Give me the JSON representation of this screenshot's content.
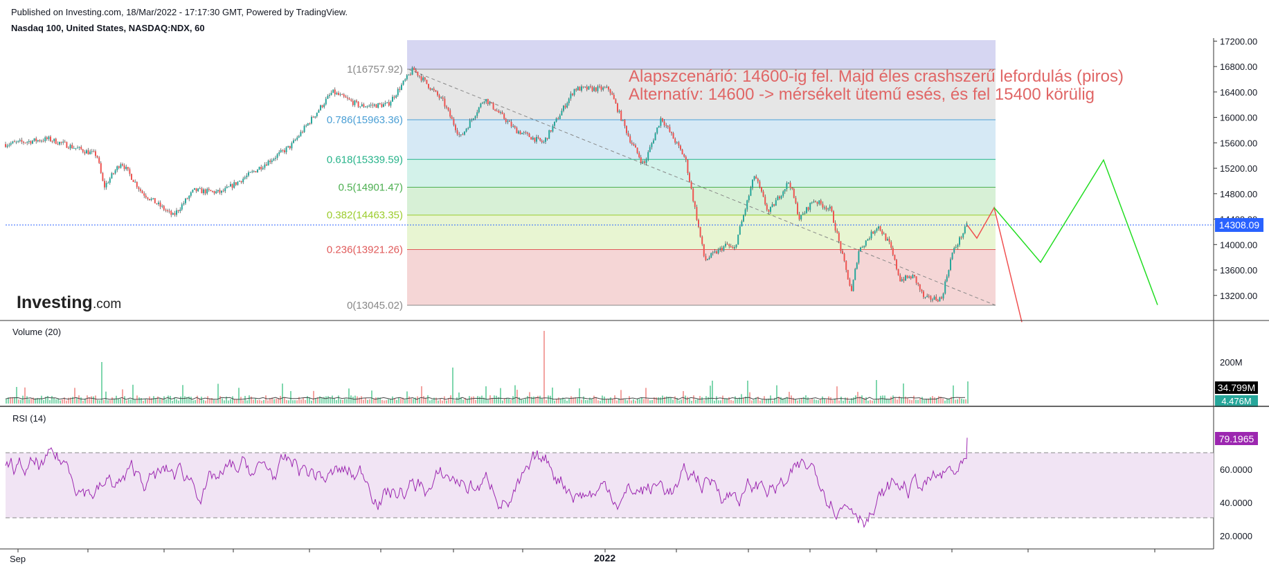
{
  "header": {
    "published": "Published on Investing.com, 18/Mar/2022 - 17:17:30 GMT, Powered by TradingView.",
    "symbol": "Nasdaq 100, United States, NASDAQ:NDX, 60"
  },
  "logo": {
    "text": "Investing",
    "suffix": ".com"
  },
  "annotation": {
    "line1": "Alapszcenárió: 14600-ig fel. Majd éles crashszerű lefordulás (piros)",
    "line2": "Alternatív: 14600 -> mérsékelt ütemű esés, és fel 15400 körülig",
    "color": "#e06666"
  },
  "chart_data": [
    {
      "type": "line",
      "panel": "price",
      "series": [],
      "y_axis_ticks": [
        17200,
        16800,
        16400,
        16000,
        15600,
        15200,
        14800,
        14400,
        14000,
        13600,
        13200
      ],
      "y_axis_labels": [
        "17200.00",
        "16800.00",
        "16400.00",
        "16000.00",
        "15600.00",
        "15200.00",
        "14800.00",
        "14400.00",
        "14000.00",
        "13600.00",
        "13200.00"
      ],
      "ylim": [
        12780,
        17260
      ],
      "last_price": 14308.09,
      "last_price_label": "14308.09",
      "fibonacci": [
        {
          "level": "1",
          "price": 16757.92,
          "label": "1(16757.92)",
          "color": "#888888"
        },
        {
          "level": "0.786",
          "price": 15963.36,
          "label": "0.786(15963.36)",
          "color": "#4a9fd5"
        },
        {
          "level": "0.618",
          "price": 15339.59,
          "label": "0.618(15339.59)",
          "color": "#26b38a"
        },
        {
          "level": "0.5",
          "price": 14901.47,
          "label": "0.5(14901.47)",
          "color": "#4caf50"
        },
        {
          "level": "0.382",
          "price": 14463.35,
          "label": "0.382(14463.35)",
          "color": "#9ccc2c"
        },
        {
          "level": "0.236",
          "price": 13921.26,
          "label": "0.236(13921.26)",
          "color": "#e05a5a"
        },
        {
          "level": "0",
          "price": 13045.02,
          "label": "0(13045.02)",
          "color": "#888888"
        }
      ],
      "scenario_red": [
        14308,
        14100,
        14580,
        12780
      ],
      "scenario_green": [
        14580,
        13720,
        15330,
        13050
      ],
      "colors": {
        "up": "#26a69a",
        "down": "#ef5350",
        "red_path": "#f05050",
        "green_path": "#22dd22",
        "price_line": "#2962ff"
      }
    },
    {
      "type": "bar",
      "panel": "volume",
      "title": "Volume (20)",
      "y_axis_labels": [
        "200M"
      ],
      "last_value_label": "34.799M",
      "ma_value_label": "4.476M",
      "series": []
    },
    {
      "type": "line",
      "panel": "rsi",
      "title": "RSI (14)",
      "y_axis_labels": [
        "60.0000",
        "40.0000",
        "20.0000"
      ],
      "bands": [
        70,
        30
      ],
      "last_value_label": "79.1965",
      "color": "#9c27b0",
      "series": []
    }
  ],
  "x_axis": {
    "labels": [
      "Sep",
      "2022"
    ]
  }
}
